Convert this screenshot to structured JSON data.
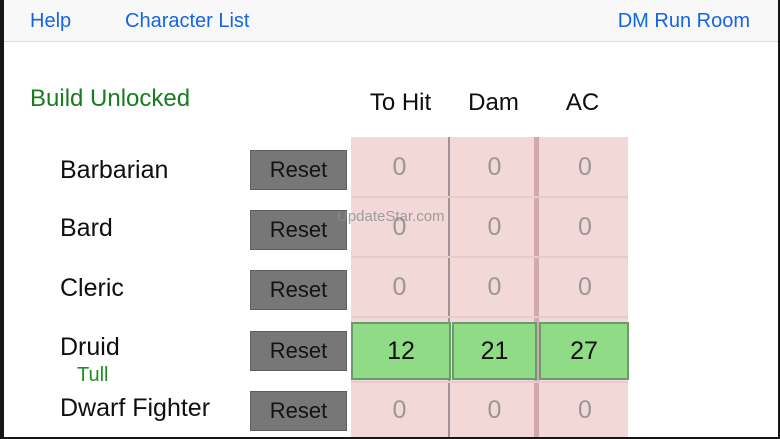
{
  "navbar": {
    "help": "Help",
    "character_list": "Character List",
    "dm_run_room": "DM Run Room",
    "link_color": "#1465e4"
  },
  "status": {
    "build_label": "Build Unlocked",
    "color": "#177d1e"
  },
  "table": {
    "headers": [
      "To Hit",
      "Dam",
      "AC"
    ],
    "reset_label": "Reset",
    "rows": [
      {
        "name": "Barbarian",
        "sub": "",
        "state": "locked",
        "values": [
          "0",
          "0",
          "0"
        ]
      },
      {
        "name": "Bard",
        "sub": "",
        "state": "locked",
        "values": [
          "0",
          "0",
          "0"
        ]
      },
      {
        "name": "Cleric",
        "sub": "",
        "state": "locked",
        "values": [
          "0",
          "0",
          "0"
        ]
      },
      {
        "name": "Druid",
        "sub": "Tull",
        "state": "unlocked",
        "values": [
          "12",
          "21",
          "27"
        ]
      },
      {
        "name": "Dwarf Fighter",
        "sub": "",
        "state": "locked",
        "values": [
          "0",
          "0",
          "0"
        ]
      }
    ],
    "locked_cell_color": "#f3d8d8",
    "unlocked_cell_color": "#90db85"
  },
  "watermark": {
    "text": "UpdateStar.com"
  }
}
